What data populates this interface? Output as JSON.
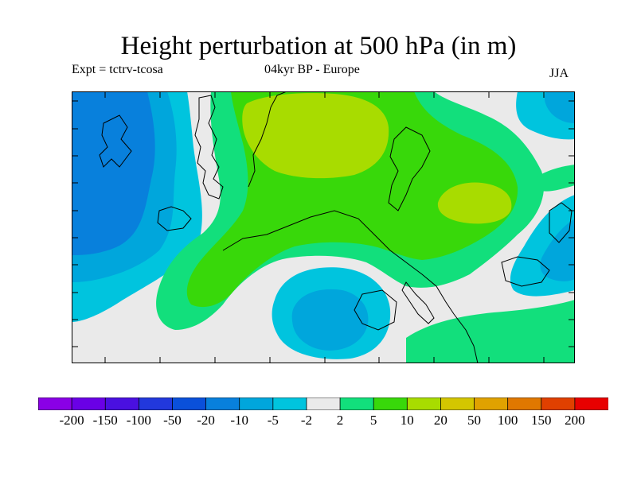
{
  "title": "Height perturbation at 500 hPa (in m)",
  "subtitle_left": "Expt = tctrv-tcosa",
  "subtitle_center": "04kyr BP - Europe",
  "season": "JJA",
  "colors": {
    "background": "#ffffff",
    "coast": "#000000"
  },
  "legend": {
    "bins": [
      {
        "color": "#8a00e6"
      },
      {
        "color": "#6a00e6"
      },
      {
        "color": "#4a10e0"
      },
      {
        "color": "#2238dc"
      },
      {
        "color": "#0a50da"
      },
      {
        "color": "#0880dc"
      },
      {
        "color": "#00a6dc"
      },
      {
        "color": "#00c4de"
      },
      {
        "color": "#eaeaea"
      },
      {
        "color": "#12df7c"
      },
      {
        "color": "#38d80a"
      },
      {
        "color": "#a8dc00"
      },
      {
        "color": "#d4c600"
      },
      {
        "color": "#e0a200"
      },
      {
        "color": "#e07800"
      },
      {
        "color": "#e04000"
      },
      {
        "color": "#e80000"
      }
    ],
    "labels": [
      "-200",
      "-150",
      "-100",
      "-50",
      "-20",
      "-10",
      "-5",
      "-2",
      "2",
      "5",
      "10",
      "20",
      "50",
      "100",
      "150",
      "200"
    ]
  }
}
